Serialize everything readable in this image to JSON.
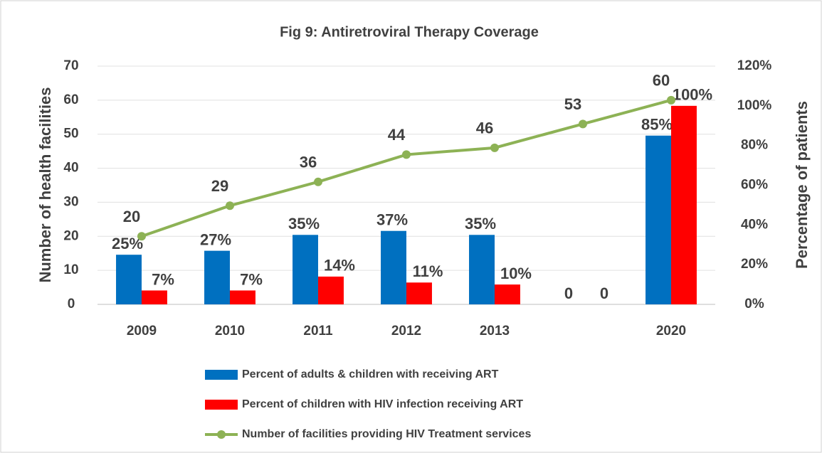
{
  "chart_data": {
    "type": "bar",
    "title": "Fig 9: Antiretroviral Therapy Coverage",
    "y_label": "Number of health facilities",
    "y2_label": "Percentage of patients",
    "categories": [
      "2009",
      "2010",
      "2011",
      "2012",
      "2013",
      null,
      "2020"
    ],
    "ylim": [
      0,
      70
    ],
    "yticks": [
      0,
      10,
      20,
      30,
      40,
      50,
      60,
      70
    ],
    "y2lim": [
      0,
      120
    ],
    "y2ticks": [
      {
        "value": 0,
        "label": "0%"
      },
      {
        "value": 20,
        "label": "20%"
      },
      {
        "value": 40,
        "label": "40%"
      },
      {
        "value": 60,
        "label": "60%"
      },
      {
        "value": 80,
        "label": "80%"
      },
      {
        "value": 100,
        "label": "100%"
      },
      {
        "value": 120,
        "label": "120%"
      }
    ],
    "grid": true,
    "legend": "bottom",
    "series": [
      {
        "name": "Percent of adults & children with receiving ART",
        "type": "bar",
        "axis": "y2",
        "color": "#0070c0",
        "values": [
          25,
          27,
          35,
          37,
          35,
          0,
          85
        ],
        "value_labels": [
          "25%",
          "27%",
          "35%",
          "37%",
          "35%",
          "0",
          "85%"
        ]
      },
      {
        "name": "Percent of children with HIV infection receiving ART",
        "type": "bar",
        "axis": "y2",
        "color": "#ff0000",
        "values": [
          7,
          7,
          14,
          11,
          10,
          0,
          100
        ],
        "value_labels": [
          "7%",
          "7%",
          "14%",
          "11%",
          "10%",
          "0",
          "100%"
        ]
      },
      {
        "name": "Number of facilities providing HIV Treatment services",
        "type": "line",
        "axis": "y",
        "color": "#8db255",
        "values": [
          20,
          29,
          36,
          44,
          46,
          53,
          60
        ]
      }
    ]
  }
}
